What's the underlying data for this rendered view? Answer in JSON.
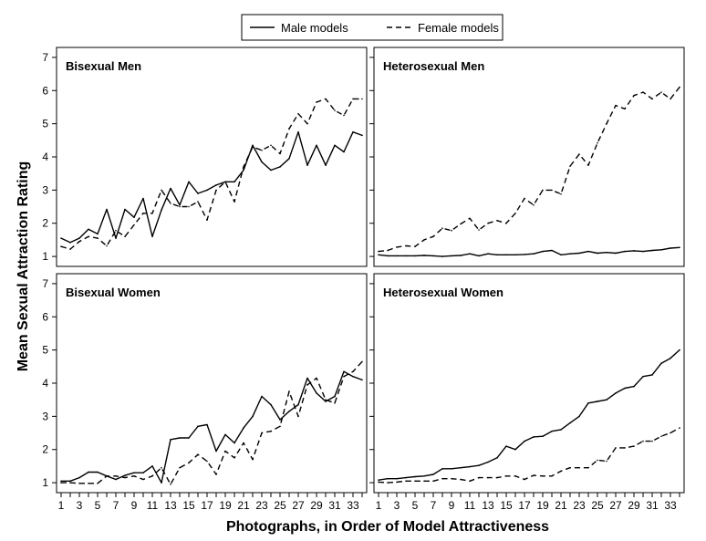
{
  "chart_data": {
    "type": "line",
    "xlabel": "Photographs, in Order of Model Attractiveness",
    "ylabel": "Mean Sexual Attraction Rating",
    "xlim": [
      0.5,
      34.5
    ],
    "ylim": [
      0.7,
      7.3
    ],
    "x_ticks": [
      1,
      3,
      5,
      7,
      9,
      11,
      13,
      15,
      17,
      19,
      21,
      23,
      25,
      27,
      29,
      31,
      33
    ],
    "y_ticks": [
      1,
      2,
      3,
      4,
      5,
      6,
      7
    ],
    "legend": [
      {
        "name": "Male models",
        "style": "solid"
      },
      {
        "name": "Female models",
        "style": "dashed"
      }
    ],
    "legend_position": "top-center",
    "line_color": "#000000",
    "x": [
      1,
      2,
      3,
      4,
      5,
      6,
      7,
      8,
      9,
      10,
      11,
      12,
      13,
      14,
      15,
      16,
      17,
      18,
      19,
      20,
      21,
      22,
      23,
      24,
      25,
      26,
      27,
      28,
      29,
      30,
      31,
      32,
      33,
      34
    ],
    "panels": [
      {
        "title": "Bisexual Men",
        "series": [
          {
            "name": "Male models",
            "style": "solid",
            "values": [
              1.55,
              1.42,
              1.55,
              1.82,
              1.68,
              2.42,
              1.55,
              2.42,
              2.18,
              2.75,
              1.6,
              2.4,
              3.05,
              2.55,
              3.25,
              2.9,
              3.0,
              3.15,
              3.25,
              3.25,
              3.6,
              4.35,
              3.85,
              3.6,
              3.7,
              3.95,
              4.75,
              3.75,
              4.35,
              3.75,
              4.35,
              4.15,
              4.75,
              4.65
            ]
          },
          {
            "name": "Female models",
            "style": "dashed",
            "values": [
              1.3,
              1.22,
              1.45,
              1.6,
              1.55,
              1.32,
              1.78,
              1.6,
              1.95,
              2.3,
              2.3,
              3.0,
              2.6,
              2.5,
              2.5,
              2.65,
              2.1,
              3.0,
              3.25,
              2.65,
              3.7,
              4.3,
              4.2,
              4.35,
              4.1,
              4.85,
              5.3,
              5.0,
              5.65,
              5.75,
              5.4,
              5.25,
              5.75,
              5.75
            ]
          }
        ]
      },
      {
        "title": "Heterosexual Men",
        "series": [
          {
            "name": "Male models",
            "style": "solid",
            "values": [
              1.05,
              1.02,
              1.02,
              1.02,
              1.02,
              1.03,
              1.02,
              1.0,
              1.02,
              1.03,
              1.08,
              1.02,
              1.08,
              1.05,
              1.05,
              1.05,
              1.06,
              1.08,
              1.15,
              1.18,
              1.05,
              1.08,
              1.1,
              1.15,
              1.1,
              1.12,
              1.1,
              1.15,
              1.17,
              1.15,
              1.18,
              1.2,
              1.25,
              1.27
            ]
          },
          {
            "name": "Female models",
            "style": "dashed",
            "values": [
              1.15,
              1.18,
              1.28,
              1.32,
              1.3,
              1.5,
              1.6,
              1.85,
              1.78,
              1.98,
              2.15,
              1.8,
              2.0,
              2.08,
              2.0,
              2.3,
              2.75,
              2.55,
              3.0,
              3.0,
              2.88,
              3.72,
              4.08,
              3.75,
              4.42,
              5.0,
              5.55,
              5.45,
              5.85,
              5.95,
              5.75,
              5.95,
              5.75,
              6.1
            ]
          }
        ]
      },
      {
        "title": "Bisexual Women",
        "series": [
          {
            "name": "Male models",
            "style": "solid",
            "values": [
              1.05,
              1.05,
              1.15,
              1.32,
              1.32,
              1.2,
              1.1,
              1.22,
              1.3,
              1.3,
              1.5,
              1.0,
              2.3,
              2.35,
              2.35,
              2.7,
              2.75,
              1.95,
              2.45,
              2.2,
              2.65,
              3.0,
              3.6,
              3.35,
              2.9,
              3.15,
              3.35,
              4.15,
              3.7,
              3.45,
              3.6,
              4.35,
              4.2,
              4.1
            ]
          },
          {
            "name": "Female models",
            "style": "dashed",
            "values": [
              1.0,
              1.0,
              0.98,
              0.98,
              0.98,
              1.2,
              1.2,
              1.15,
              1.2,
              1.1,
              1.2,
              1.45,
              0.95,
              1.45,
              1.6,
              1.85,
              1.65,
              1.25,
              1.95,
              1.75,
              2.2,
              1.7,
              2.5,
              2.55,
              2.7,
              3.75,
              3.0,
              3.95,
              4.15,
              3.5,
              3.4,
              4.2,
              4.35,
              4.65
            ]
          }
        ]
      },
      {
        "title": "Heterosexual Women",
        "series": [
          {
            "name": "Male models",
            "style": "solid",
            "values": [
              1.08,
              1.12,
              1.12,
              1.15,
              1.18,
              1.2,
              1.25,
              1.42,
              1.42,
              1.45,
              1.48,
              1.52,
              1.62,
              1.75,
              2.1,
              2.0,
              2.25,
              2.38,
              2.4,
              2.55,
              2.6,
              2.8,
              3.0,
              3.4,
              3.45,
              3.5,
              3.7,
              3.85,
              3.9,
              4.2,
              4.25,
              4.6,
              4.75,
              5.0
            ]
          },
          {
            "name": "Female models",
            "style": "dashed",
            "values": [
              1.02,
              1.0,
              1.02,
              1.05,
              1.05,
              1.05,
              1.05,
              1.12,
              1.12,
              1.1,
              1.05,
              1.15,
              1.15,
              1.15,
              1.2,
              1.2,
              1.1,
              1.22,
              1.2,
              1.2,
              1.35,
              1.45,
              1.45,
              1.45,
              1.68,
              1.65,
              2.05,
              2.05,
              2.1,
              2.25,
              2.25,
              2.4,
              2.5,
              2.65
            ]
          }
        ]
      }
    ]
  }
}
